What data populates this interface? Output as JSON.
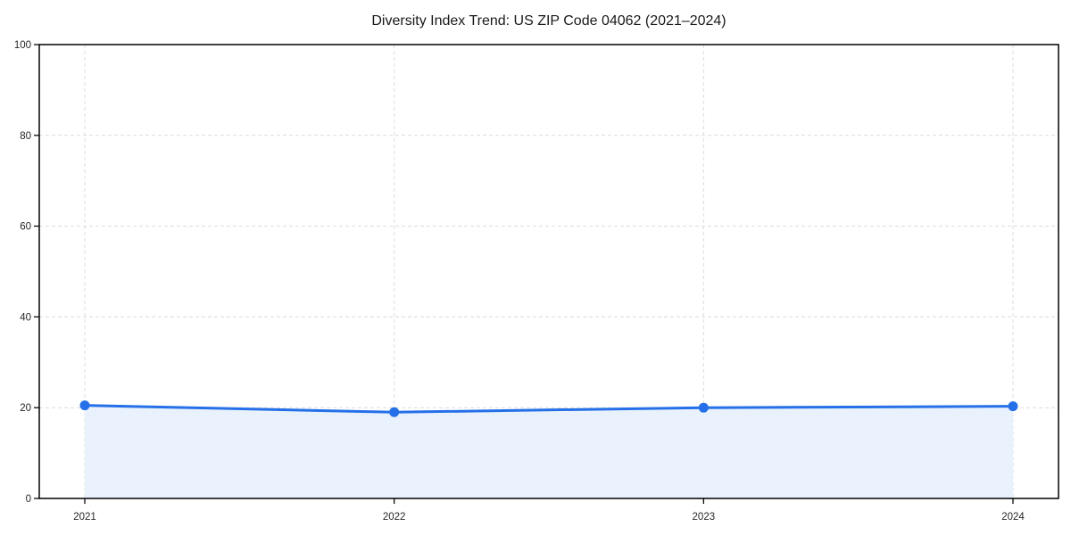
{
  "chart_data": {
    "type": "area",
    "title": "Diversity Index Trend: US ZIP Code 04062 (2021–2024)",
    "categories": [
      "2021",
      "2022",
      "2023",
      "2024"
    ],
    "series": [
      {
        "name": "Diversity Index",
        "values": [
          20.5,
          19.0,
          20.0,
          20.3
        ]
      }
    ],
    "xlabel": "",
    "ylabel": "",
    "ylim": [
      0,
      100
    ],
    "yticks": [
      0,
      20,
      40,
      60,
      80,
      100
    ],
    "grid": "dashed both axes",
    "legend_position": "none",
    "marker": "circle",
    "colors": {
      "line": "#2570e8",
      "marker": "#2570e8",
      "area_fill": "#e9f1fc",
      "grid": "#dcdcdc",
      "axis": "#000000",
      "title_text": "#1a1a1a",
      "tick_text": "#262626",
      "background": "#ffffff"
    }
  }
}
